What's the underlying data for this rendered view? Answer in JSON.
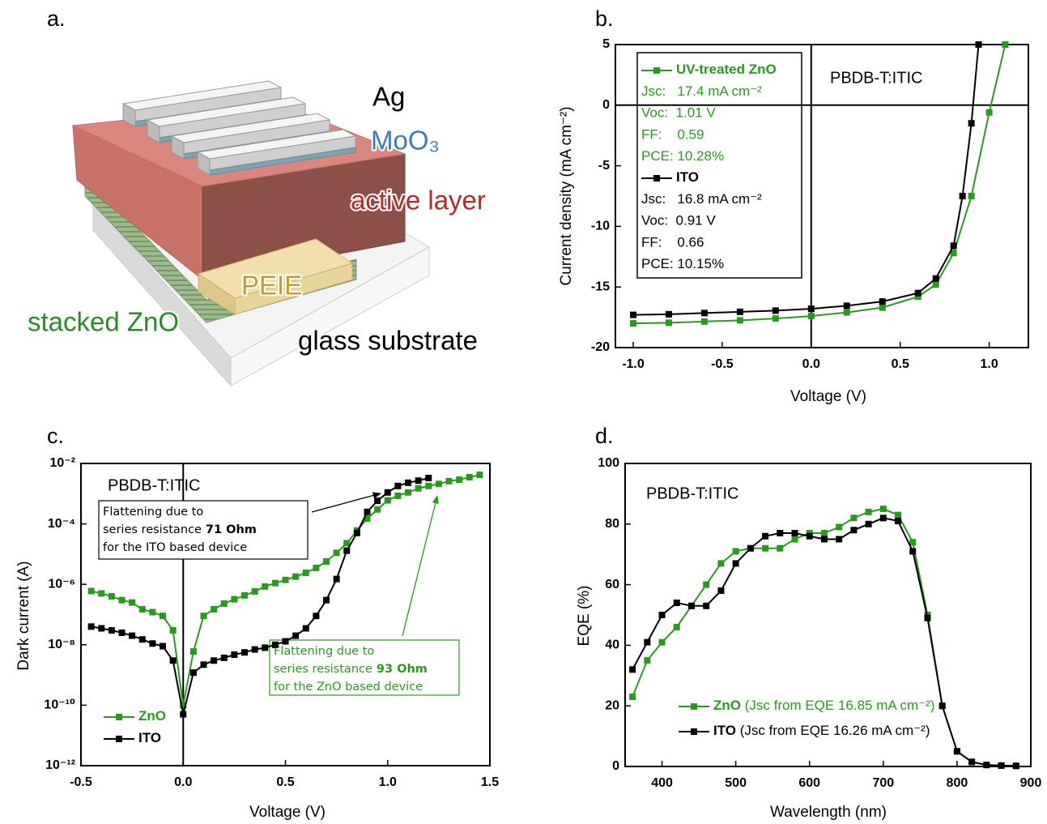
{
  "diagram": {
    "label": "a.",
    "layers": [
      "Ag",
      "MoO₃",
      "active layer",
      "PEIE",
      "stacked ZnO",
      "glass substrate"
    ]
  },
  "chart_data": [
    {
      "type": "line",
      "label": "b.",
      "annotation": "PBDB-T:ITIC",
      "x_label": "Voltage (V)",
      "y_label": "Current density (mA cm⁻²)",
      "xlim": [
        -1.1,
        1.22
      ],
      "ylim": [
        -20,
        5
      ],
      "xticks": [
        {
          "value": -1,
          "label": "-1.0"
        },
        -0.5,
        {
          "value": 0,
          "label": "0.0"
        },
        0.5,
        {
          "value": 1,
          "label": "1.0"
        }
      ],
      "yticks": [
        -20,
        -15,
        -10,
        -5,
        0,
        5
      ],
      "series": [
        {
          "name": "UV-treated ZnO",
          "color": "#2a9a1e",
          "stats": [
            "Jsc:   17.4 mA cm⁻²",
            "Voc:  1.01 V",
            "FF:    0.59",
            "PCE: 10.28%"
          ],
          "x": [
            -1.0,
            -0.8,
            -0.6,
            -0.4,
            -0.2,
            0,
            0.2,
            0.4,
            0.6,
            0.7,
            0.8,
            0.9,
            1.0,
            1.09
          ],
          "values": [
            -18.0,
            -17.95,
            -17.85,
            -17.75,
            -17.6,
            -17.4,
            -17.1,
            -16.7,
            -15.8,
            -14.8,
            -12.2,
            -7.5,
            -0.6,
            5
          ]
        },
        {
          "name": "ITO",
          "color": "#000000",
          "stats": [
            "Jsc:   16.8 mA cm⁻²",
            "Voc:  0.91 V",
            "FF:    0.66",
            "PCE: 10.15%"
          ],
          "x": [
            -1.0,
            -0.8,
            -0.6,
            -0.4,
            -0.2,
            0,
            0.2,
            0.4,
            0.6,
            0.7,
            0.8,
            0.85,
            0.9,
            0.94
          ],
          "values": [
            -17.3,
            -17.25,
            -17.15,
            -17.05,
            -16.95,
            -16.8,
            -16.55,
            -16.2,
            -15.5,
            -14.3,
            -11.6,
            -7.5,
            -1.5,
            5
          ]
        }
      ]
    },
    {
      "type": "line",
      "label": "c.",
      "annotation": "PBDB-T:ITIC",
      "yscale": "log",
      "x_label": "Voltage (V)",
      "y_label": "Dark current  (A)",
      "xlim": [
        -0.5,
        1.5
      ],
      "ylim": [
        1e-12,
        0.01
      ],
      "xticks": [
        -0.5,
        {
          "value": 0,
          "label": "0.0"
        },
        0.5,
        {
          "value": 1,
          "label": "1.0"
        },
        1.5
      ],
      "yticks": [
        {
          "value": 1e-12,
          "label": "10⁻¹²"
        },
        {
          "value": 1e-10,
          "label": "10⁻¹⁰"
        },
        {
          "value": 1e-08,
          "label": "10⁻⁸"
        },
        {
          "value": 1e-06,
          "label": "10⁻⁶"
        },
        {
          "value": 0.0001,
          "label": "10⁻⁴"
        },
        {
          "value": 0.01,
          "label": "10⁻²"
        }
      ],
      "annotations": [
        {
          "color": "#000000",
          "lines": [
            [
              "Flattening due to"
            ],
            [
              "series resistance",
              "71 Ohm"
            ],
            [
              "for the ITO based device"
            ]
          ]
        },
        {
          "color": "#2a9a1e",
          "lines": [
            [
              "Flattening due to"
            ],
            [
              "series resistance",
              "93 Ohm"
            ],
            [
              "for the ZnO based device"
            ]
          ]
        }
      ],
      "series": [
        {
          "name": "ZnO",
          "color": "#2a9a1e",
          "x": [
            -0.45,
            -0.4,
            -0.35,
            -0.3,
            -0.25,
            -0.2,
            -0.15,
            -0.1,
            -0.05,
            0,
            0.05,
            0.1,
            0.15,
            0.2,
            0.25,
            0.3,
            0.35,
            0.4,
            0.45,
            0.5,
            0.55,
            0.6,
            0.65,
            0.7,
            0.75,
            0.8,
            0.85,
            0.9,
            0.95,
            1.0,
            1.05,
            1.1,
            1.15,
            1.2,
            1.25,
            1.3,
            1.35,
            1.4,
            1.45
          ],
          "values": [
            6e-07,
            5e-07,
            4e-07,
            3e-07,
            2.5e-07,
            1.5e-07,
            1.2e-07,
            9e-08,
            3e-08,
            1e-10,
            6e-09,
            9e-08,
            1.5e-07,
            2.3e-07,
            3.2e-07,
            4.3e-07,
            5.8e-07,
            8.5e-07,
            1.1e-06,
            1.4e-06,
            1.8e-06,
            2.4e-06,
            3.5e-06,
            5.7e-06,
            1.1e-05,
            2.3e-05,
            6e-05,
            0.00015,
            0.0003,
            0.0006,
            0.00085,
            0.0011,
            0.0015,
            0.0018,
            0.0021,
            0.0026,
            0.0029,
            0.0035,
            0.0042
          ]
        },
        {
          "name": "ITO",
          "color": "#000000",
          "x": [
            -0.45,
            -0.4,
            -0.35,
            -0.3,
            -0.25,
            -0.2,
            -0.15,
            -0.1,
            -0.05,
            0,
            0.05,
            0.1,
            0.15,
            0.2,
            0.25,
            0.3,
            0.35,
            0.4,
            0.45,
            0.5,
            0.55,
            0.6,
            0.65,
            0.7,
            0.75,
            0.8,
            0.85,
            0.9,
            0.95,
            1.0,
            1.05,
            1.1,
            1.15,
            1.2
          ],
          "values": [
            4e-08,
            3.5e-08,
            3e-08,
            2.5e-08,
            2e-08,
            1.5e-08,
            1.1e-08,
            9e-09,
            3e-09,
            5e-11,
            1.2e-09,
            2.2e-09,
            3e-09,
            3.7e-09,
            4.7e-09,
            5.6e-09,
            7e-09,
            8e-09,
            1e-08,
            1.3e-08,
            2e-08,
            3.5e-08,
            9e-08,
            3e-07,
            1.5e-06,
            1.3e-05,
            5e-05,
            0.00025,
            0.00058,
            0.0011,
            0.0018,
            0.0023,
            0.0027,
            0.0033
          ]
        }
      ]
    },
    {
      "type": "line",
      "label": "d.",
      "annotation": "PBDB-T:ITIC",
      "x_label": "Wavelength (nm)",
      "y_label": "EQE (%)",
      "xlim": [
        350,
        900
      ],
      "ylim": [
        0,
        100
      ],
      "xticks": [
        400,
        500,
        600,
        700,
        800,
        900
      ],
      "yticks": [
        0,
        20,
        40,
        60,
        80,
        100
      ],
      "x": [
        360,
        380,
        400,
        420,
        440,
        460,
        480,
        500,
        520,
        540,
        560,
        580,
        600,
        620,
        640,
        660,
        680,
        700,
        720,
        740,
        760,
        780,
        800,
        820,
        840,
        860,
        880
      ],
      "series": [
        {
          "name": "ZnO",
          "note": " (Jsc from EQE 16.85 mA cm⁻²)",
          "color": "#2a9a1e",
          "values": [
            23,
            35,
            41,
            46,
            53,
            60,
            67,
            71,
            72,
            72,
            72,
            75,
            77,
            77,
            79,
            82,
            84,
            85,
            83,
            74,
            50,
            20,
            5,
            1.5,
            0.5,
            0.3,
            0.2
          ]
        },
        {
          "name": "ITO",
          "note": "  (Jsc from EQE 16.26 mA cm⁻²)",
          "color": "#000000",
          "values": [
            32,
            41,
            50,
            54,
            53,
            53,
            58,
            67,
            72,
            76,
            77,
            77,
            76,
            75,
            75,
            78,
            80,
            82,
            81,
            71,
            49,
            20,
            5,
            1.5,
            0.5,
            0.3,
            0.2
          ]
        }
      ]
    }
  ]
}
